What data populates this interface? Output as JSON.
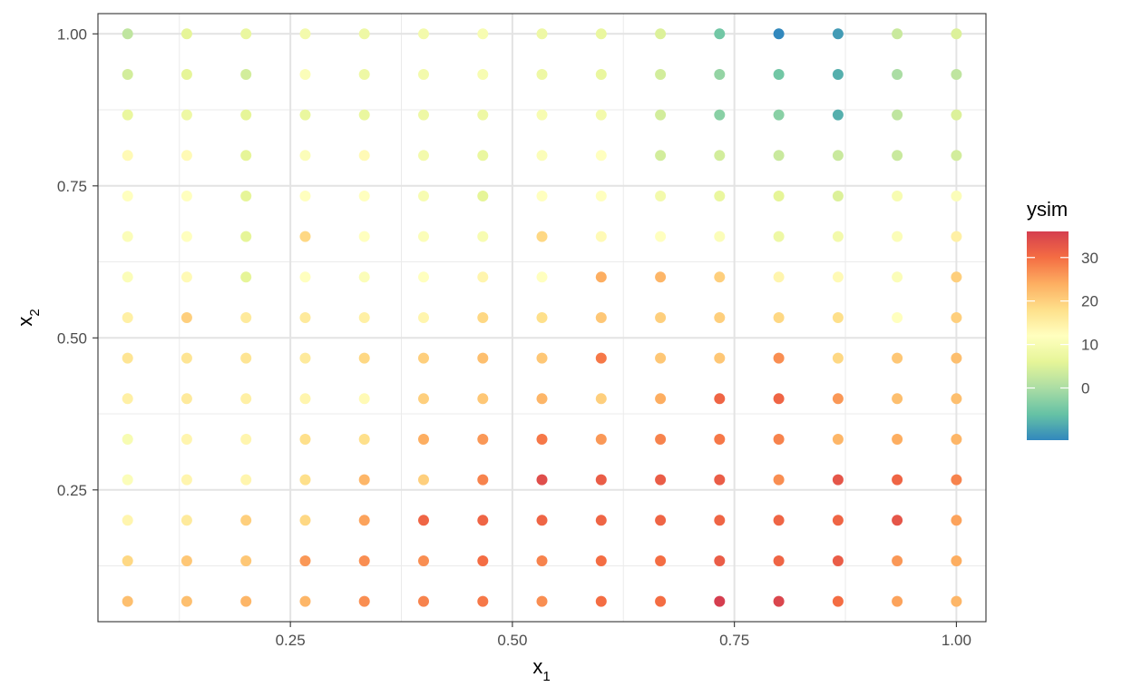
{
  "chart_data": {
    "type": "scatter",
    "x_values": [
      0.0667,
      0.1333,
      0.2,
      0.2667,
      0.3333,
      0.4,
      0.4667,
      0.5333,
      0.6,
      0.6667,
      0.7333,
      0.8,
      0.8667,
      0.9333,
      1.0
    ],
    "y_values": [
      0.0667,
      0.1333,
      0.2,
      0.2667,
      0.3333,
      0.4,
      0.4667,
      0.5333,
      0.6,
      0.6667,
      0.7333,
      0.8,
      0.8667,
      0.9333,
      1.0
    ],
    "ysim_rows_top_to_bottom": [
      [
        2,
        6,
        7,
        9,
        8,
        9,
        10,
        8,
        7,
        5,
        -5,
        -12,
        -10,
        3,
        5
      ],
      [
        4,
        6,
        4,
        11,
        8,
        9,
        10,
        8,
        7,
        4,
        -2,
        -5,
        -8,
        0,
        2
      ],
      [
        7,
        8,
        6,
        7,
        7,
        8,
        8,
        10,
        9,
        4,
        -3,
        -3,
        -8,
        2,
        5
      ],
      [
        13,
        13,
        6,
        11,
        13,
        9,
        7,
        11,
        12,
        4,
        4,
        3,
        3,
        3,
        4
      ],
      [
        12,
        12,
        6,
        12,
        12,
        10,
        6,
        12,
        12,
        9,
        7,
        6,
        5,
        10,
        11
      ],
      [
        11,
        12,
        6,
        19,
        12,
        11,
        10,
        19,
        13,
        12,
        11,
        8,
        9,
        11,
        15
      ],
      [
        11,
        13,
        6,
        12,
        11,
        12,
        14,
        12,
        24,
        23,
        20,
        14,
        13,
        11,
        20
      ],
      [
        15,
        20,
        16,
        16,
        15,
        14,
        19,
        18,
        21,
        20,
        20,
        19,
        18,
        12,
        20
      ],
      [
        17,
        17,
        17,
        16,
        19,
        20,
        22,
        21,
        29,
        21,
        21,
        27,
        19,
        21,
        22
      ],
      [
        15,
        16,
        15,
        14,
        13,
        20,
        21,
        23,
        20,
        24,
        31,
        31,
        26,
        22,
        22
      ],
      [
        10,
        14,
        14,
        18,
        18,
        24,
        26,
        29,
        26,
        28,
        29,
        28,
        23,
        24,
        23
      ],
      [
        11,
        14,
        14,
        18,
        23,
        20,
        28,
        34,
        32,
        32,
        32,
        27,
        33,
        31,
        28
      ],
      [
        14,
        16,
        20,
        19,
        25,
        31,
        31,
        31,
        31,
        31,
        31,
        31,
        31,
        33,
        25
      ],
      [
        19,
        21,
        21,
        26,
        27,
        27,
        30,
        28,
        30,
        30,
        32,
        31,
        32,
        26,
        24
      ],
      [
        22,
        22,
        23,
        23,
        27,
        28,
        29,
        27,
        30,
        30,
        36,
        35,
        30,
        25,
        23
      ]
    ],
    "x_label": "x",
    "x_label_sub": "1",
    "y_label": "x",
    "y_label_sub": "2",
    "x_ticks": [
      "0.25",
      "0.50",
      "0.75",
      "1.00"
    ],
    "x_tick_values": [
      0.25,
      0.5,
      0.75,
      1.0
    ],
    "y_ticks": [
      "0.25",
      "0.50",
      "0.75",
      "1.00"
    ],
    "y_tick_values": [
      0.25,
      0.5,
      0.75,
      1.0
    ],
    "xlim": [
      0.0333,
      1.0333
    ],
    "ylim": [
      0.0333,
      1.0333
    ],
    "grid": true,
    "legend": {
      "title": "ysim",
      "placement": "right",
      "breaks": [
        0,
        10,
        20,
        30
      ],
      "break_labels": [
        "0",
        "10",
        "20",
        "30"
      ],
      "range": [
        -12,
        36
      ],
      "palette": [
        "#3288bd",
        "#66c2a5",
        "#abdda4",
        "#e6f598",
        "#ffffbf",
        "#fee08b",
        "#fdae61",
        "#f46d43",
        "#d53e4f"
      ]
    }
  }
}
